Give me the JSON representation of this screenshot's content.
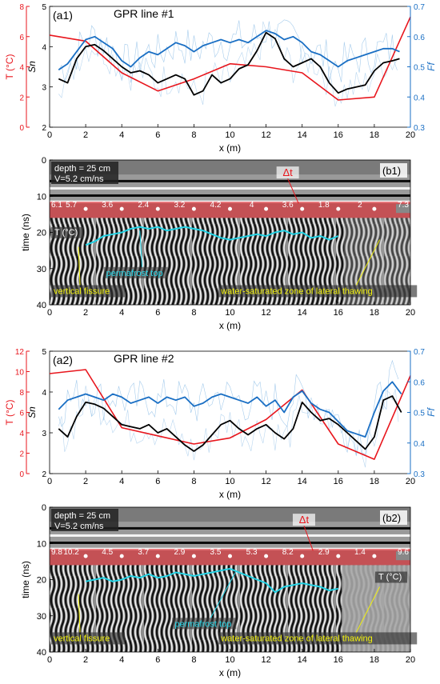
{
  "colors": {
    "temperature": "#e8161d",
    "sn": "#000000",
    "ff": "#1a6fc4",
    "ff_raw": "#9cc6ea",
    "band": "#e8161d",
    "permafrost": "#22d4e6",
    "annotation": "#f2f20c"
  },
  "chart_data": [
    {
      "type": "line",
      "panel_label": "(a1)",
      "title": "GPR line #1",
      "xlabel": "x (m)",
      "ylabel_left": "T (°C)",
      "ylabel_mid": "Sn",
      "ylabel_right": "Ff",
      "xlim": [
        0,
        20
      ],
      "xticks": [
        0,
        2,
        4,
        6,
        8,
        10,
        12,
        14,
        16,
        18,
        20
      ],
      "t_lim": [
        0,
        8
      ],
      "t_ticks": [
        0,
        2,
        4,
        6,
        8
      ],
      "sn_lim": [
        2,
        5
      ],
      "sn_ticks": [
        2,
        3,
        4,
        5
      ],
      "ff_lim": [
        0.3,
        0.7
      ],
      "ff_ticks": [
        0.3,
        0.4,
        0.5,
        0.6,
        0.7
      ],
      "series": [
        {
          "name": "T (°C)",
          "axis": "t",
          "x": [
            0,
            2,
            4,
            6,
            8,
            10,
            12,
            14,
            16,
            18,
            20
          ],
          "y": [
            6.1,
            5.7,
            3.6,
            2.4,
            3.2,
            4.2,
            4.0,
            3.6,
            1.8,
            2.0,
            7.3
          ]
        },
        {
          "name": "Sn",
          "axis": "sn",
          "x": [
            0.5,
            1,
            1.5,
            2,
            2.5,
            3,
            3.5,
            4,
            4.5,
            5,
            5.5,
            6,
            6.5,
            7,
            7.5,
            8,
            8.5,
            9,
            9.5,
            10,
            10.5,
            11,
            11.5,
            12,
            12.5,
            13,
            13.5,
            14,
            14.5,
            15,
            15.5,
            16,
            16.5,
            17,
            17.5,
            18,
            18.5,
            19,
            19.4
          ],
          "y": [
            3.2,
            3.1,
            3.7,
            4.0,
            4.05,
            3.9,
            3.7,
            3.5,
            3.35,
            3.4,
            3.3,
            3.1,
            3.2,
            3.3,
            3.2,
            2.8,
            2.9,
            3.3,
            3.1,
            3.2,
            3.45,
            3.55,
            3.9,
            4.35,
            4.2,
            3.7,
            3.5,
            3.6,
            3.7,
            3.5,
            3.1,
            2.85,
            2.95,
            3.0,
            3.05,
            3.4,
            3.6,
            3.65,
            3.7
          ]
        },
        {
          "name": "Ff",
          "axis": "ff",
          "x": [
            0.5,
            1,
            1.5,
            2,
            2.5,
            3,
            3.5,
            4,
            4.5,
            5,
            5.5,
            6,
            6.5,
            7,
            7.5,
            8,
            8.5,
            9,
            9.5,
            10,
            10.5,
            11,
            11.5,
            12,
            12.5,
            13,
            13.5,
            14,
            14.5,
            15,
            15.5,
            16,
            16.5,
            17,
            17.5,
            18,
            18.5,
            19,
            19.4
          ],
          "y": [
            0.49,
            0.51,
            0.55,
            0.59,
            0.6,
            0.58,
            0.56,
            0.52,
            0.5,
            0.53,
            0.55,
            0.54,
            0.56,
            0.58,
            0.57,
            0.55,
            0.57,
            0.58,
            0.59,
            0.58,
            0.59,
            0.58,
            0.6,
            0.62,
            0.61,
            0.59,
            0.6,
            0.58,
            0.55,
            0.54,
            0.52,
            0.5,
            0.52,
            0.53,
            0.54,
            0.55,
            0.56,
            0.56,
            0.55
          ]
        }
      ]
    },
    {
      "type": "heatmap",
      "panel_label": "(b1)",
      "xlabel": "x (m)",
      "ylabel": "time (ns)",
      "xlim": [
        0,
        20
      ],
      "ylim": [
        0,
        40
      ],
      "xticks": [
        0,
        2,
        4,
        6,
        8,
        10,
        12,
        14,
        16,
        18,
        20
      ],
      "yticks": [
        0,
        10,
        20,
        30,
        40
      ],
      "depth_label": "depth = 25 cm",
      "velocity_label": "V=5.2 cm/ns",
      "band_label": "Δt",
      "band_ns": [
        11.5,
        16.0
      ],
      "temp_tag": "T (°C)",
      "temp_markers_x": [
        0,
        2,
        4,
        6,
        8,
        10,
        12,
        14,
        16,
        18,
        20
      ],
      "temp_labels": [
        "6.1",
        "5.7",
        "3.6",
        "2.4",
        "3.2",
        "4.2",
        "4",
        "3.6",
        "1.8",
        "2",
        "7.3"
      ],
      "permafrost_label": "permafrost top",
      "fissure_label": "vertical fissure",
      "thaw_label": "water-saturated zone of lateral thawing",
      "permafrost_x": [
        2,
        2.5,
        3,
        3.5,
        4,
        4.5,
        5,
        5.5,
        6,
        6.5,
        7,
        7.5,
        8,
        8.5,
        9,
        9.5,
        10,
        10.5,
        11,
        11.5,
        12,
        12.5,
        13,
        13.5,
        14,
        14.5,
        15,
        15.5,
        16
      ],
      "permafrost_ns": [
        23.5,
        22.5,
        21.0,
        20.5,
        20.0,
        19.0,
        18.5,
        19.0,
        18.5,
        19.5,
        19.0,
        18.5,
        19.0,
        19.5,
        20.5,
        21.5,
        22.0,
        21.5,
        21.0,
        20.5,
        21.0,
        20.0,
        19.5,
        20.5,
        20.0,
        21.5,
        21.0,
        22.0,
        21.0
      ]
    },
    {
      "type": "line",
      "panel_label": "(a2)",
      "title": "GPR line #2",
      "xlabel": "x (m)",
      "ylabel_left": "T (°C)",
      "ylabel_mid": "Sn",
      "ylabel_right": "Ff",
      "xlim": [
        0,
        20
      ],
      "xticks": [
        0,
        2,
        4,
        6,
        8,
        10,
        12,
        14,
        16,
        18,
        20
      ],
      "t_lim": [
        0,
        12
      ],
      "t_ticks": [
        0,
        2,
        4,
        6,
        8,
        10,
        12
      ],
      "sn_lim": [
        2,
        5
      ],
      "sn_ticks": [
        2,
        3,
        4,
        5
      ],
      "ff_lim": [
        0.3,
        0.7
      ],
      "ff_ticks": [
        0.3,
        0.4,
        0.5,
        0.6,
        0.7
      ],
      "series": [
        {
          "name": "T (°C)",
          "axis": "t",
          "x": [
            0,
            2,
            4,
            6,
            8,
            10,
            12,
            14,
            16,
            18,
            20
          ],
          "y": [
            9.8,
            10.2,
            4.5,
            3.7,
            2.9,
            3.5,
            5.3,
            8.2,
            2.9,
            1.4,
            9.6
          ]
        },
        {
          "name": "Sn",
          "axis": "sn",
          "x": [
            0.5,
            1,
            1.5,
            2,
            2.5,
            3,
            3.5,
            4,
            4.5,
            5,
            5.5,
            6,
            6.5,
            7,
            7.5,
            8,
            8.5,
            9,
            9.5,
            10,
            10.5,
            11,
            11.5,
            12,
            12.5,
            13,
            13.5,
            14,
            14.5,
            15,
            15.5,
            16,
            16.5,
            17,
            17.5,
            18,
            18.5,
            19,
            19.5
          ],
          "y": [
            3.1,
            2.9,
            3.4,
            3.75,
            3.7,
            3.6,
            3.4,
            3.2,
            3.15,
            3.1,
            3.2,
            3.0,
            3.1,
            2.9,
            2.7,
            2.55,
            2.7,
            2.95,
            3.2,
            3.3,
            3.1,
            2.95,
            3.1,
            3.2,
            3.0,
            2.85,
            3.1,
            3.75,
            3.5,
            3.3,
            3.35,
            3.2,
            3.0,
            2.8,
            2.6,
            2.9,
            3.8,
            3.9,
            3.5
          ]
        },
        {
          "name": "Ff",
          "axis": "ff",
          "x": [
            0.5,
            1,
            1.5,
            2,
            2.5,
            3,
            3.5,
            4,
            4.5,
            5,
            5.5,
            6,
            6.5,
            7,
            7.5,
            8,
            8.5,
            9,
            9.5,
            10,
            10.5,
            11,
            11.5,
            12,
            12.5,
            13,
            13.5,
            14,
            14.5,
            15,
            15.5,
            16,
            16.5,
            17,
            17.5,
            18,
            18.5,
            19,
            19.5
          ],
          "y": [
            0.51,
            0.54,
            0.55,
            0.56,
            0.55,
            0.54,
            0.56,
            0.55,
            0.53,
            0.54,
            0.55,
            0.53,
            0.55,
            0.54,
            0.55,
            0.52,
            0.53,
            0.55,
            0.56,
            0.55,
            0.54,
            0.53,
            0.55,
            0.52,
            0.54,
            0.5,
            0.55,
            0.57,
            0.53,
            0.51,
            0.5,
            0.47,
            0.44,
            0.43,
            0.42,
            0.5,
            0.57,
            0.6,
            0.56
          ]
        }
      ]
    },
    {
      "type": "heatmap",
      "panel_label": "(b2)",
      "xlabel": "x (m)",
      "ylabel": "time (ns)",
      "xlim": [
        0,
        20
      ],
      "ylim": [
        0,
        40
      ],
      "xticks": [
        0,
        2,
        4,
        6,
        8,
        10,
        12,
        14,
        16,
        18,
        20
      ],
      "yticks": [
        0,
        10,
        20,
        30,
        40
      ],
      "depth_label": "depth = 25 cm",
      "velocity_label": "V=5.2 cm/ns",
      "band_label": "Δt",
      "band_ns": [
        11.5,
        16.0
      ],
      "temp_tag": "T (°C)",
      "temp_markers_x": [
        0,
        2,
        4,
        6,
        8,
        10,
        12,
        14,
        16,
        18,
        20
      ],
      "temp_labels": [
        "9.8",
        "10.2",
        "4.5",
        "3.7",
        "2.9",
        "3.5",
        "5.3",
        "8.2",
        "2.9",
        "1.4",
        "9.6"
      ],
      "permafrost_label": "permafrost top",
      "fissure_label": "vertical fissure",
      "thaw_label": "water-saturated zone of lateral thawing",
      "permafrost_x": [
        2,
        2.5,
        3,
        3.5,
        4,
        4.5,
        5,
        5.5,
        6,
        6.5,
        7,
        7.5,
        8,
        8.5,
        9,
        9.5,
        10,
        10.5,
        11,
        11.5,
        12,
        12.5,
        13,
        13.5,
        14,
        14.5,
        15,
        15.5,
        16
      ],
      "permafrost_ns": [
        20.5,
        20.0,
        19.5,
        20.5,
        20.0,
        19.0,
        19.5,
        18.5,
        19.5,
        19.0,
        18.0,
        18.5,
        19.0,
        18.5,
        18.0,
        17.5,
        17.0,
        18.0,
        19.0,
        20.0,
        21.0,
        23.5,
        22.0,
        21.5,
        21.0,
        21.5,
        22.0,
        23.0,
        22.5
      ]
    }
  ]
}
